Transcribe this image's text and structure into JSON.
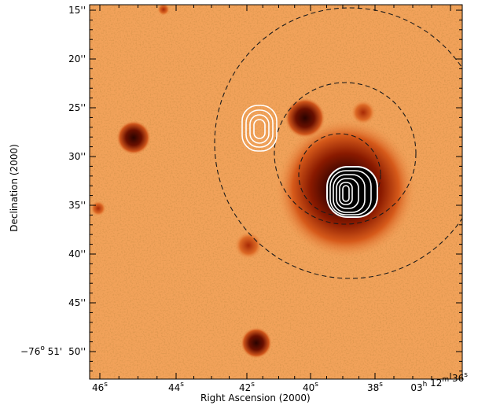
{
  "axes": {
    "xlabel": "Right Ascension (2000)",
    "ylabel": "Declination (2000)",
    "x_ticks": [
      {
        "main": "46",
        "sup": "s"
      },
      {
        "main": "44",
        "sup": "s"
      },
      {
        "main": "42",
        "sup": "s"
      },
      {
        "main": "40",
        "sup": "s"
      },
      {
        "main": "38",
        "sup": "s"
      },
      {
        "pre": "03",
        "preSup": "h",
        "mid": " 12",
        "midSup": "m",
        "main": " 36",
        "sup": "s"
      }
    ],
    "y_ticks": [
      "15''",
      "20''",
      "25''",
      "30''",
      "35''",
      "40''",
      "45''",
      "50''"
    ],
    "y_prefix": {
      "deg": "−76",
      "degSup": "o",
      "arcmin": " 51'"
    }
  },
  "colors": {
    "background_orange": "#f2a25a",
    "frame": "#000000",
    "dark_source": "#2a0500",
    "contour": "#ffffff",
    "dashed_circle": "#1a1a1a"
  }
}
